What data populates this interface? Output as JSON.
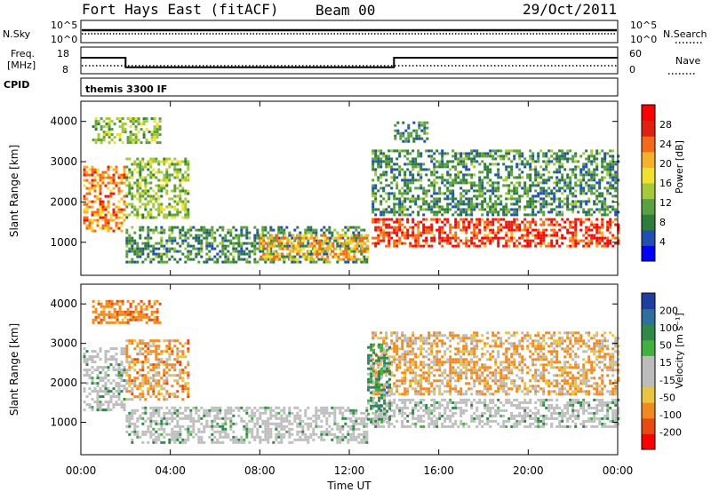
{
  "header": {
    "station": "Fort Hays East (fitACF)",
    "beam": "Beam 00",
    "date": "29/Oct/2011"
  },
  "noise_panel": {
    "left_label": "N.Sky",
    "right_label": "N.Search",
    "left_ticks": [
      "10^5",
      "10^0"
    ],
    "right_ticks": [
      "10^5",
      "10^0"
    ]
  },
  "freq_panel": {
    "left_label_1": "Freq.",
    "left_label_2": "[MHz]",
    "right_label": "Nave",
    "left_ticks": [
      "18",
      "8"
    ],
    "right_ticks": [
      "60",
      "0"
    ]
  },
  "cpid_panel": {
    "label": "CPID",
    "text": "themis 3300 IF"
  },
  "colors": {
    "power": [
      "#0000ff",
      "#1f4fb0",
      "#2f7d3a",
      "#5aa040",
      "#a6c93a",
      "#f0e030",
      "#f7b02a",
      "#f26a1a",
      "#e02010",
      "#ff0000"
    ],
    "velocity": [
      "#1f3fa0",
      "#2f6fa0",
      "#2f8a4a",
      "#44b040",
      "#bcbcbc",
      "#bcbcbc",
      "#e8c440",
      "#f08a20",
      "#e84a10",
      "#ff0000"
    ],
    "ground_scatter": "#bebebe"
  },
  "chart_data": [
    {
      "type": "line",
      "title": "N.Sky / N.Search",
      "x_range": [
        "00:00",
        "24:00"
      ],
      "y_scale": "log",
      "y_ticks": [
        "10^0",
        "10^5"
      ],
      "series": [
        {
          "name": "N.Sky",
          "style": "solid",
          "level": "near 10^5 (approx. constant)"
        },
        {
          "name": "N.Search",
          "style": "dotted",
          "level": "just below N.Sky"
        }
      ]
    },
    {
      "type": "line",
      "x_range": [
        "00:00",
        "24:00"
      ],
      "series": [
        {
          "name": "Freq. [MHz]",
          "style": "solid",
          "x": [
            "00:00",
            "02:00",
            "02:00",
            "14:00",
            "14:00",
            "24:00"
          ],
          "y": [
            14,
            14,
            10.4,
            10.4,
            14,
            14
          ]
        },
        {
          "name": "Nave",
          "style": "dotted",
          "x": [
            "00:00",
            "24:00"
          ],
          "y": [
            20,
            20
          ]
        }
      ],
      "y_left_ticks": [
        8,
        18
      ],
      "y_right_ticks": [
        0,
        60
      ]
    },
    {
      "type": "heatmap",
      "xlabel": "",
      "ylabel": "Slant Range [km]",
      "x_ticks": [
        "00:00",
        "04:00",
        "08:00",
        "12:00",
        "16:00",
        "20:00",
        "00:00"
      ],
      "y_ticks": [
        1000,
        2000,
        3000,
        4000
      ],
      "ylim": [
        180,
        4500
      ],
      "xlim_hours": [
        0,
        24
      ],
      "colorbar": {
        "label": "Power [dB]",
        "ticks": [
          4,
          8,
          12,
          16,
          20,
          24,
          28
        ],
        "range": [
          0,
          30
        ]
      },
      "regions": [
        {
          "t_start": 0.1,
          "t_end": 2.0,
          "r_min": 1300,
          "r_max": 2900,
          "value": 22
        },
        {
          "t_start": 0.5,
          "t_end": 3.5,
          "r_min": 3500,
          "r_max": 4100,
          "value": 12
        },
        {
          "t_start": 2.0,
          "t_end": 4.8,
          "r_min": 1600,
          "r_max": 3100,
          "value": 12
        },
        {
          "t_start": 2.0,
          "t_end": 12.8,
          "r_min": 500,
          "r_max": 1400,
          "value": 8
        },
        {
          "t_start": 8.0,
          "t_end": 12.8,
          "r_min": 600,
          "r_max": 1200,
          "value": 20
        },
        {
          "t_start": 13.0,
          "t_end": 24.0,
          "r_min": 900,
          "r_max": 1600,
          "value": 26
        },
        {
          "t_start": 13.0,
          "t_end": 24.0,
          "r_min": 1700,
          "r_max": 3300,
          "value": 8
        },
        {
          "t_start": 14.0,
          "t_end": 15.5,
          "r_min": 3500,
          "r_max": 4000,
          "value": 8
        }
      ]
    },
    {
      "type": "heatmap",
      "xlabel": "Time UT",
      "ylabel": "Slant Range [km]",
      "x_ticks": [
        "00:00",
        "04:00",
        "08:00",
        "12:00",
        "16:00",
        "20:00",
        "00:00"
      ],
      "y_ticks": [
        1000,
        2000,
        3000,
        4000
      ],
      "ylim": [
        180,
        4500
      ],
      "xlim_hours": [
        0,
        24
      ],
      "colorbar": {
        "label": "Velocity [m s⁻¹]",
        "ticks": [
          200,
          100,
          50,
          15,
          -15,
          -50,
          -100,
          -200
        ]
      },
      "regions": [
        {
          "t_start": 0.1,
          "t_end": 2.0,
          "r_min": 1300,
          "r_max": 2900,
          "value": 0,
          "ground_scatter": true
        },
        {
          "t_start": 0.5,
          "t_end": 3.5,
          "r_min": 3500,
          "r_max": 4100,
          "value": -60
        },
        {
          "t_start": 2.0,
          "t_end": 4.8,
          "r_min": 1600,
          "r_max": 3100,
          "value": -40
        },
        {
          "t_start": 2.0,
          "t_end": 12.8,
          "r_min": 500,
          "r_max": 1400,
          "value": 0,
          "ground_scatter": true
        },
        {
          "t_start": 13.0,
          "t_end": 24.0,
          "r_min": 900,
          "r_max": 1600,
          "value": 0,
          "ground_scatter": true
        },
        {
          "t_start": 13.0,
          "t_end": 24.0,
          "r_min": 1700,
          "r_max": 3300,
          "value": -30
        },
        {
          "t_start": 12.8,
          "t_end": 13.8,
          "r_min": 1000,
          "r_max": 3000,
          "value": 40
        }
      ]
    }
  ]
}
